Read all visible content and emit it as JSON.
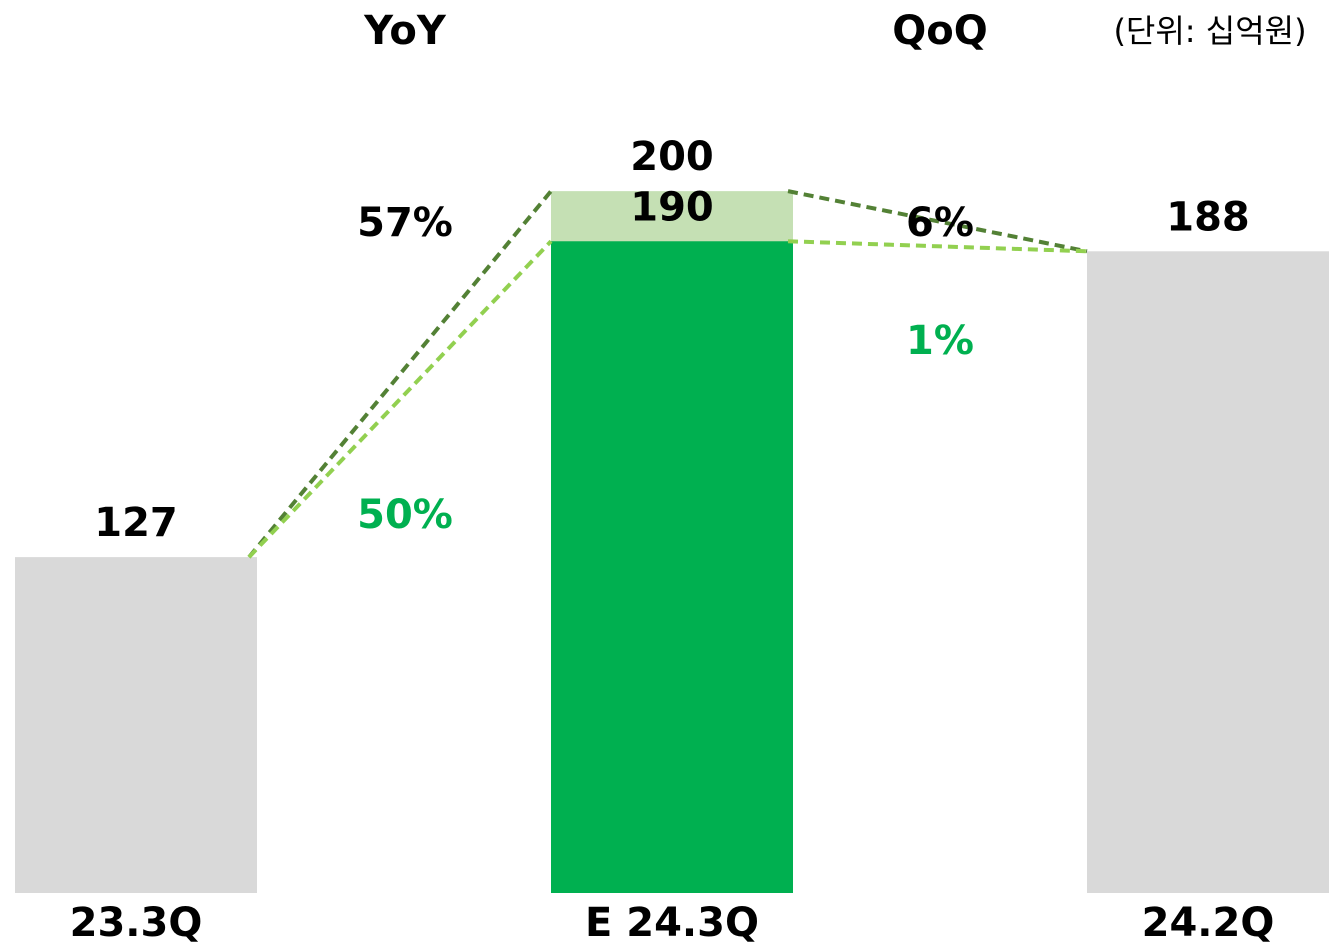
{
  "chart_data": {
    "type": "bar",
    "unit_label": "(단위: 십억원)",
    "categories": [
      "23.3Q",
      "E 24.3Q",
      "24.2Q"
    ],
    "series": [
      {
        "values": [
          null,
          200,
          null
        ],
        "colors": [
          "#c5e0b4",
          "#c5e0b4",
          "#c5e0b4"
        ],
        "line_color": "#538135"
      },
      {
        "values": [
          127,
          190,
          188
        ],
        "colors": [
          "#d9d9d9",
          "#00b050",
          "#d9d9d9"
        ],
        "line_color": "#92d050"
      }
    ],
    "ylim": [
      60,
      210
    ],
    "annotations": [
      {
        "text": "YoY",
        "color": "#000000"
      },
      {
        "text": "QoQ",
        "color": "#000000"
      },
      {
        "text": "57%",
        "color": "#000000"
      },
      {
        "text": "50%",
        "color": "#00b050"
      },
      {
        "text": "6%",
        "color": "#000000"
      },
      {
        "text": "1%",
        "color": "#00b050"
      }
    ]
  }
}
